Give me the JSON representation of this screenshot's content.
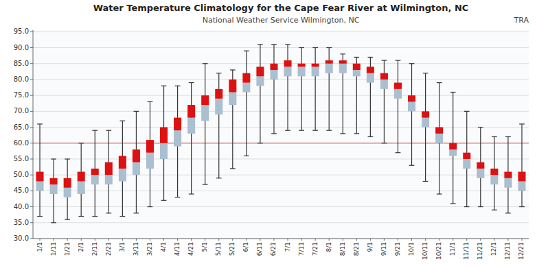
{
  "chart_data": {
    "type": "box",
    "title": "Water Temperature Climatology for the Cape Fear River at Wilmington, NC",
    "subtitle": "National Weather Service Wilmington, NC",
    "annotations": [
      "TRA"
    ],
    "categories": [
      "1/1",
      "1/11",
      "1/21",
      "2/1",
      "2/11",
      "2/21",
      "3/1",
      "3/11",
      "3/21",
      "4/1",
      "4/11",
      "4/21",
      "5/1",
      "5/11",
      "5/21",
      "6/1",
      "6/11",
      "6/21",
      "7/1",
      "7/11",
      "7/21",
      "8/1",
      "8/11",
      "8/21",
      "9/1",
      "9/11",
      "9/21",
      "10/1",
      "10/11",
      "10/21",
      "11/1",
      "11/11",
      "11/21",
      "12/1",
      "12/11",
      "12/21"
    ],
    "whisker_low": [
      37,
      35,
      36,
      37,
      37,
      38,
      37,
      38,
      40,
      42,
      43,
      44,
      47,
      49,
      52,
      56,
      60,
      63,
      64,
      64,
      64,
      64,
      63,
      63,
      62,
      60,
      57,
      53,
      48,
      44,
      41,
      40,
      40,
      39,
      38,
      40
    ],
    "q1": [
      45,
      44,
      43,
      44,
      47,
      47,
      48,
      50,
      52,
      55,
      59,
      63,
      67,
      69,
      72,
      76,
      78,
      80,
      81,
      81,
      81,
      82,
      82,
      81,
      79,
      77,
      74,
      70,
      65,
      60,
      56,
      52,
      49,
      47,
      46,
      45
    ],
    "median": [
      48,
      47,
      46,
      48,
      50,
      50,
      52,
      54,
      57,
      60,
      64,
      68,
      72,
      74,
      76,
      79,
      81,
      83,
      84,
      84,
      84,
      85,
      85,
      83,
      82,
      80,
      77,
      73,
      68,
      63,
      58,
      55,
      52,
      50,
      49,
      48
    ],
    "q3": [
      51,
      49,
      49,
      51,
      52,
      54,
      56,
      58,
      61,
      65,
      68,
      72,
      75,
      77,
      80,
      82,
      84,
      85,
      86,
      85,
      85,
      86,
      86,
      85,
      84,
      82,
      79,
      75,
      70,
      65,
      60,
      57,
      54,
      52,
      51,
      51
    ],
    "whisker_high": [
      66,
      55,
      55,
      60,
      64,
      64,
      67,
      70,
      73,
      78,
      78,
      79,
      85,
      82,
      83,
      89,
      91,
      91,
      91,
      90,
      90,
      90,
      88,
      87,
      87,
      86,
      86,
      85,
      82,
      79,
      76,
      70,
      65,
      62,
      62,
      66
    ],
    "colors": [
      "#aabfcf",
      "#dd1111"
    ],
    "reference_line": 60.0,
    "reference_line_color": "#dd8888",
    "ylim": [
      30.0,
      95.5
    ],
    "yticks": [
      {
        "value": 30.0,
        "label": "30.0"
      },
      {
        "value": 35.0,
        "label": "35.0"
      },
      {
        "value": 40.0,
        "label": "40.0"
      },
      {
        "value": 45.0,
        "label": "45.0"
      },
      {
        "value": 50.0,
        "label": "50.0"
      },
      {
        "value": 55.0,
        "label": "55.0"
      },
      {
        "value": 60.0,
        "label": "60.0"
      },
      {
        "value": 65.0,
        "label": "65.0"
      },
      {
        "value": 70.0,
        "label": "70.0"
      },
      {
        "value": 75.0,
        "label": "75.0"
      },
      {
        "value": 80.0,
        "label": "80.0"
      },
      {
        "value": 85.0,
        "label": "85.0"
      },
      {
        "value": 90.0,
        "label": "90.0"
      },
      {
        "value": 95.0,
        "label": "95.0"
      }
    ],
    "grid": true
  }
}
